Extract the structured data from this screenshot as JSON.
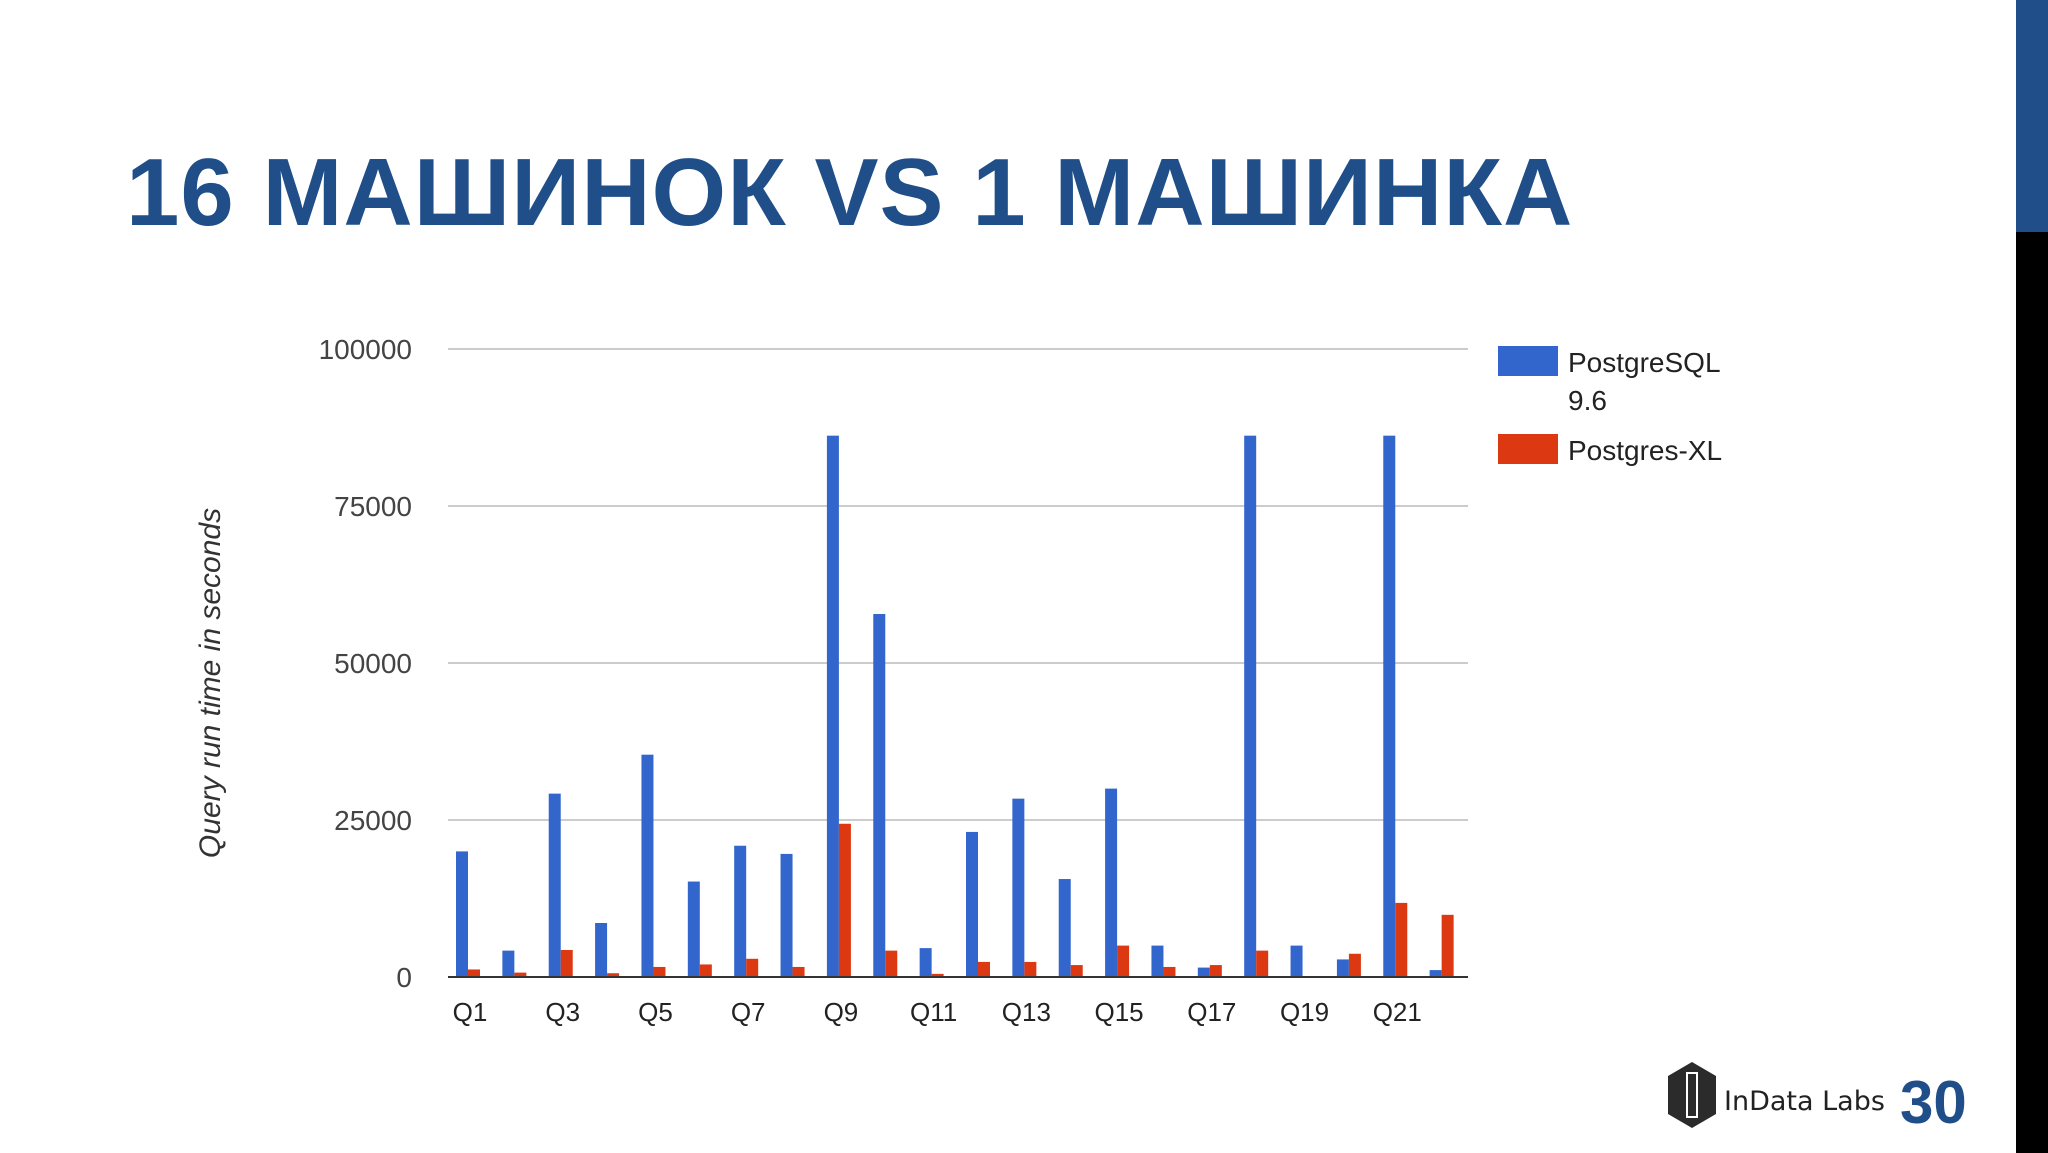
{
  "slide": {
    "title": "16 МАШИНОК VS 1 МАШИНКА",
    "brand_name": "InData Labs",
    "page_number": "30"
  },
  "colors": {
    "title": "#1f4e89",
    "series_postgresql": "#3366cc",
    "series_xl": "#dc3912",
    "side_bar_top": "#1f4e89",
    "side_bar_bottom": "#000000"
  },
  "icons": {
    "logo": "indata-labs-logo-icon"
  },
  "chart_data": {
    "type": "bar",
    "ylabel": "Query run time in seconds",
    "ylim": [
      0,
      100000
    ],
    "yticks": [
      0,
      25000,
      50000,
      75000,
      100000
    ],
    "ytick_labels": [
      "0",
      "25000",
      "50000",
      "75000",
      "100000"
    ],
    "categories": [
      "Q1",
      "Q2",
      "Q3",
      "Q4",
      "Q5",
      "Q6",
      "Q7",
      "Q8",
      "Q9",
      "Q10",
      "Q11",
      "Q12",
      "Q13",
      "Q14",
      "Q15",
      "Q16",
      "Q17",
      "Q18",
      "Q19",
      "Q20",
      "Q21",
      "Q22"
    ],
    "shown_x_labels": [
      "Q1",
      "Q3",
      "Q5",
      "Q7",
      "Q9",
      "Q11",
      "Q13",
      "Q15",
      "Q17",
      "Q19",
      "Q21"
    ],
    "series": [
      {
        "name": "PostgreSQL 9.6",
        "legend_lines": [
          "PostgreSQL",
          "9.6"
        ],
        "color": "#3366cc",
        "values": [
          20000,
          4200,
          29200,
          8600,
          35400,
          15200,
          20900,
          19600,
          86200,
          57800,
          4600,
          23100,
          28400,
          15600,
          30000,
          5000,
          1500,
          86200,
          5000,
          2800,
          86200,
          1100
        ]
      },
      {
        "name": "Postgres-XL",
        "legend_lines": [
          "Postgres-XL"
        ],
        "color": "#dc3912",
        "values": [
          1200,
          700,
          4300,
          600,
          1600,
          2000,
          2900,
          1600,
          24400,
          4200,
          500,
          2400,
          2400,
          1900,
          5000,
          1600,
          1900,
          4200,
          0,
          3700,
          11800,
          9900
        ]
      }
    ],
    "grid": true,
    "legend_position": "right"
  }
}
